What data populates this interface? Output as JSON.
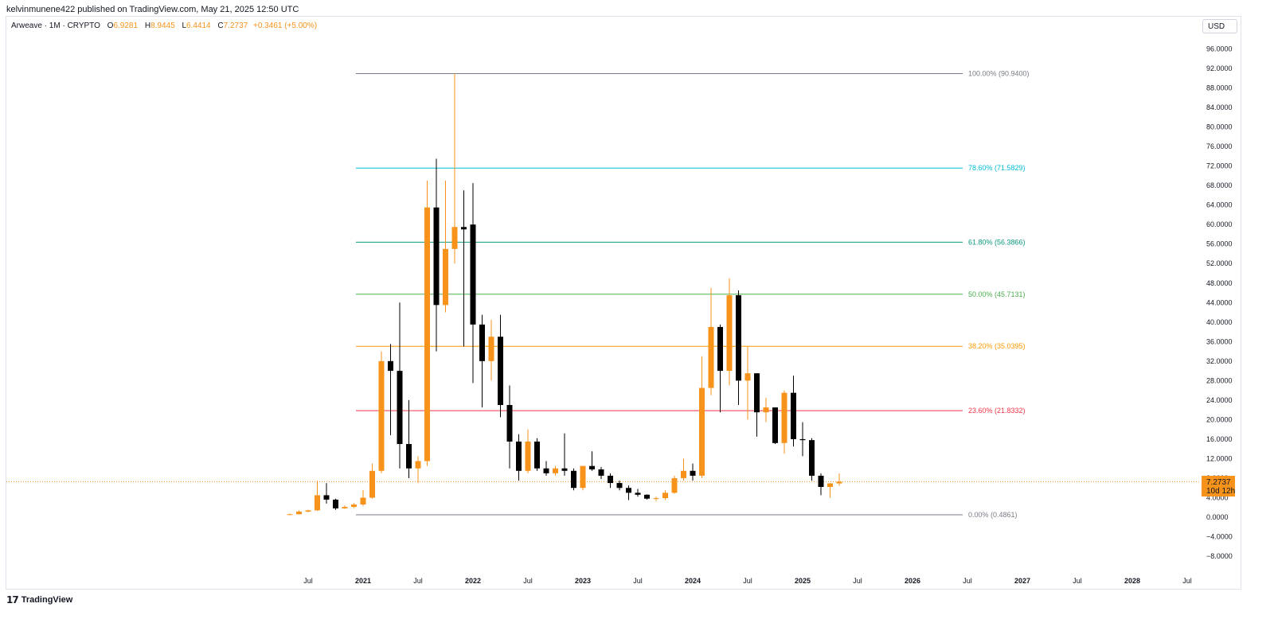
{
  "header": {
    "published": "kelvinmunene422 published on TradingView.com, May 21, 2025 12:50 UTC"
  },
  "legend": {
    "symbol": "Arweave · 1M · CRYPTO",
    "open_label": "O",
    "open": "6.9281",
    "high_label": "H",
    "high": "8.9445",
    "low_label": "L",
    "low": "6.4414",
    "close_label": "C",
    "close": "7.2737",
    "change": "+0.3461 (+5.00%)"
  },
  "currency": "USD",
  "price_badge": {
    "price": "7.2737",
    "countdown": "10d 12h"
  },
  "footer": {
    "brand": "TradingView"
  },
  "colors": {
    "up": "#f7931a",
    "down": "#000000",
    "grid": "#e0e3eb"
  },
  "chart_data": {
    "type": "candlestick",
    "interval": "1M",
    "y_range": [
      -10,
      98
    ],
    "y_ticks": [
      "96.0000",
      "92.0000",
      "88.0000",
      "84.0000",
      "80.0000",
      "76.0000",
      "72.0000",
      "68.0000",
      "64.0000",
      "60.0000",
      "56.0000",
      "52.0000",
      "48.0000",
      "44.0000",
      "40.0000",
      "36.0000",
      "32.0000",
      "28.0000",
      "24.0000",
      "20.0000",
      "16.0000",
      "12.0000",
      "8.0000",
      "4.0000",
      "0.0000",
      "−4.0000",
      "−8.0000"
    ],
    "x_ticks": [
      {
        "label": "Jul",
        "t": -6
      },
      {
        "label": "2021",
        "t": 0
      },
      {
        "label": "Jul",
        "t": 6
      },
      {
        "label": "2022",
        "t": 12
      },
      {
        "label": "Jul",
        "t": 18
      },
      {
        "label": "2023",
        "t": 24
      },
      {
        "label": "Jul",
        "t": 30
      },
      {
        "label": "2024",
        "t": 36
      },
      {
        "label": "Jul",
        "t": 42
      },
      {
        "label": "2025",
        "t": 48
      },
      {
        "label": "Jul",
        "t": 54
      },
      {
        "label": "2026",
        "t": 60
      },
      {
        "label": "Jul",
        "t": 66
      },
      {
        "label": "2027",
        "t": 72
      },
      {
        "label": "Jul",
        "t": 78
      },
      {
        "label": "2028",
        "t": 84
      },
      {
        "label": "Jul",
        "t": 90
      }
    ],
    "fib_levels": [
      {
        "label": "100.00% (90.9400)",
        "value": 90.94,
        "color": "#787b86"
      },
      {
        "label": "78.60% (71.5829)",
        "value": 71.5829,
        "color": "#00bcd4"
      },
      {
        "label": "61.80% (56.3866)",
        "value": 56.3866,
        "color": "#089981"
      },
      {
        "label": "50.00% (45.7131)",
        "value": 45.7131,
        "color": "#4caf50"
      },
      {
        "label": "38.20% (35.0395)",
        "value": 35.0395,
        "color": "#ff9800"
      },
      {
        "label": "23.60% (21.8332)",
        "value": 21.8332,
        "color": "#f23645"
      },
      {
        "label": "0.00% (0.4861)",
        "value": 0.4861,
        "color": "#787b86"
      }
    ],
    "current_price": 7.2737,
    "candles": [
      {
        "t": -8,
        "o": 0.45,
        "h": 0.75,
        "l": 0.4,
        "c": 0.6
      },
      {
        "t": -7,
        "o": 0.6,
        "h": 1.4,
        "l": 0.55,
        "c": 1.15
      },
      {
        "t": -6,
        "o": 1.15,
        "h": 1.5,
        "l": 1.0,
        "c": 1.4
      },
      {
        "t": -5,
        "o": 1.4,
        "h": 7.5,
        "l": 1.3,
        "c": 4.5
      },
      {
        "t": -4,
        "o": 4.5,
        "h": 7.0,
        "l": 2.8,
        "c": 3.6
      },
      {
        "t": -3,
        "o": 3.6,
        "h": 3.8,
        "l": 1.5,
        "c": 1.8
      },
      {
        "t": -2,
        "o": 1.8,
        "h": 2.4,
        "l": 1.7,
        "c": 2.1
      },
      {
        "t": -1,
        "o": 2.1,
        "h": 2.9,
        "l": 1.9,
        "c": 2.6
      },
      {
        "t": 0,
        "o": 2.6,
        "h": 5.6,
        "l": 2.3,
        "c": 4.0
      },
      {
        "t": 1,
        "o": 4.0,
        "h": 11.0,
        "l": 3.8,
        "c": 9.5
      },
      {
        "t": 2,
        "o": 9.5,
        "h": 34.0,
        "l": 9.0,
        "c": 32.0
      },
      {
        "t": 3,
        "o": 32.0,
        "h": 35.5,
        "l": 16.8,
        "c": 30.0
      },
      {
        "t": 4,
        "o": 30.0,
        "h": 44.0,
        "l": 10.0,
        "c": 15.0
      },
      {
        "t": 5,
        "o": 15.0,
        "h": 24.0,
        "l": 8.0,
        "c": 10.0
      },
      {
        "t": 6,
        "o": 10.0,
        "h": 12.5,
        "l": 7.0,
        "c": 11.5
      },
      {
        "t": 7,
        "o": 11.5,
        "h": 69.0,
        "l": 10.5,
        "c": 63.5
      },
      {
        "t": 8,
        "o": 63.5,
        "h": 73.5,
        "l": 34.0,
        "c": 43.5
      },
      {
        "t": 9,
        "o": 43.5,
        "h": 69.0,
        "l": 42.0,
        "c": 55.0
      },
      {
        "t": 10,
        "o": 55.0,
        "h": 90.94,
        "l": 52.0,
        "c": 59.5
      },
      {
        "t": 11,
        "o": 59.5,
        "h": 67.0,
        "l": 35.0,
        "c": 59.0
      },
      {
        "t": 12,
        "o": 60.0,
        "h": 68.5,
        "l": 27.5,
        "c": 39.5
      },
      {
        "t": 13,
        "o": 39.5,
        "h": 41.5,
        "l": 22.5,
        "c": 32.0
      },
      {
        "t": 14,
        "o": 32.0,
        "h": 40.5,
        "l": 28.0,
        "c": 37.0
      },
      {
        "t": 15,
        "o": 37.0,
        "h": 41.5,
        "l": 20.5,
        "c": 23.0
      },
      {
        "t": 16,
        "o": 23.0,
        "h": 27.0,
        "l": 10.0,
        "c": 15.5
      },
      {
        "t": 17,
        "o": 15.5,
        "h": 17.0,
        "l": 7.5,
        "c": 9.5
      },
      {
        "t": 18,
        "o": 9.5,
        "h": 18.0,
        "l": 9.0,
        "c": 15.5
      },
      {
        "t": 19,
        "o": 15.5,
        "h": 16.2,
        "l": 9.5,
        "c": 10.0
      },
      {
        "t": 20,
        "o": 10.0,
        "h": 11.5,
        "l": 8.5,
        "c": 9.0
      },
      {
        "t": 21,
        "o": 9.0,
        "h": 10.5,
        "l": 8.5,
        "c": 10.0
      },
      {
        "t": 22,
        "o": 10.0,
        "h": 17.2,
        "l": 8.5,
        "c": 9.5
      },
      {
        "t": 23,
        "o": 9.5,
        "h": 10.0,
        "l": 5.5,
        "c": 6.0
      },
      {
        "t": 24,
        "o": 6.0,
        "h": 10.5,
        "l": 5.5,
        "c": 10.5
      },
      {
        "t": 25,
        "o": 10.5,
        "h": 13.5,
        "l": 9.5,
        "c": 9.8
      },
      {
        "t": 26,
        "o": 9.8,
        "h": 10.3,
        "l": 7.8,
        "c": 8.5
      },
      {
        "t": 27,
        "o": 8.5,
        "h": 9.0,
        "l": 6.0,
        "c": 7.0
      },
      {
        "t": 28,
        "o": 7.0,
        "h": 7.5,
        "l": 5.5,
        "c": 6.0
      },
      {
        "t": 29,
        "o": 6.0,
        "h": 6.5,
        "l": 3.5,
        "c": 5.0
      },
      {
        "t": 30,
        "o": 5.0,
        "h": 5.8,
        "l": 4.2,
        "c": 4.6
      },
      {
        "t": 31,
        "o": 4.6,
        "h": 4.7,
        "l": 3.6,
        "c": 3.8
      },
      {
        "t": 32,
        "o": 3.8,
        "h": 4.2,
        "l": 3.3,
        "c": 3.9
      },
      {
        "t": 33,
        "o": 3.9,
        "h": 5.5,
        "l": 3.5,
        "c": 5.0
      },
      {
        "t": 34,
        "o": 5.0,
        "h": 8.5,
        "l": 4.8,
        "c": 8.0
      },
      {
        "t": 35,
        "o": 8.0,
        "h": 12.0,
        "l": 7.5,
        "c": 9.5
      },
      {
        "t": 36,
        "o": 9.5,
        "h": 11.0,
        "l": 7.5,
        "c": 8.5
      },
      {
        "t": 37,
        "o": 8.5,
        "h": 33.0,
        "l": 8.0,
        "c": 26.5
      },
      {
        "t": 38,
        "o": 26.5,
        "h": 47.0,
        "l": 25.0,
        "c": 39.0
      },
      {
        "t": 39,
        "o": 39.0,
        "h": 39.5,
        "l": 21.5,
        "c": 30.0
      },
      {
        "t": 40,
        "o": 30.0,
        "h": 49.0,
        "l": 27.0,
        "c": 45.5
      },
      {
        "t": 41,
        "o": 45.5,
        "h": 46.5,
        "l": 23.0,
        "c": 28.0
      },
      {
        "t": 42,
        "o": 28.0,
        "h": 35.0,
        "l": 20.0,
        "c": 29.5
      },
      {
        "t": 43,
        "o": 29.5,
        "h": 29.5,
        "l": 16.5,
        "c": 21.5
      },
      {
        "t": 44,
        "o": 21.5,
        "h": 24.5,
        "l": 19.5,
        "c": 22.5
      },
      {
        "t": 45,
        "o": 22.5,
        "h": 22.5,
        "l": 15.0,
        "c": 15.2
      },
      {
        "t": 46,
        "o": 15.2,
        "h": 26.0,
        "l": 13.0,
        "c": 25.5
      },
      {
        "t": 47,
        "o": 25.5,
        "h": 29.0,
        "l": 14.5,
        "c": 16.0
      },
      {
        "t": 48,
        "o": 16.0,
        "h": 19.5,
        "l": 12.5,
        "c": 15.8
      },
      {
        "t": 49,
        "o": 15.8,
        "h": 16.2,
        "l": 7.5,
        "c": 8.5
      },
      {
        "t": 50,
        "o": 8.5,
        "h": 9.0,
        "l": 4.5,
        "c": 6.2
      },
      {
        "t": 51,
        "o": 6.2,
        "h": 7.0,
        "l": 4.0,
        "c": 6.93
      },
      {
        "t": 52,
        "o": 6.9281,
        "h": 8.9445,
        "l": 6.4414,
        "c": 7.2737
      }
    ]
  }
}
